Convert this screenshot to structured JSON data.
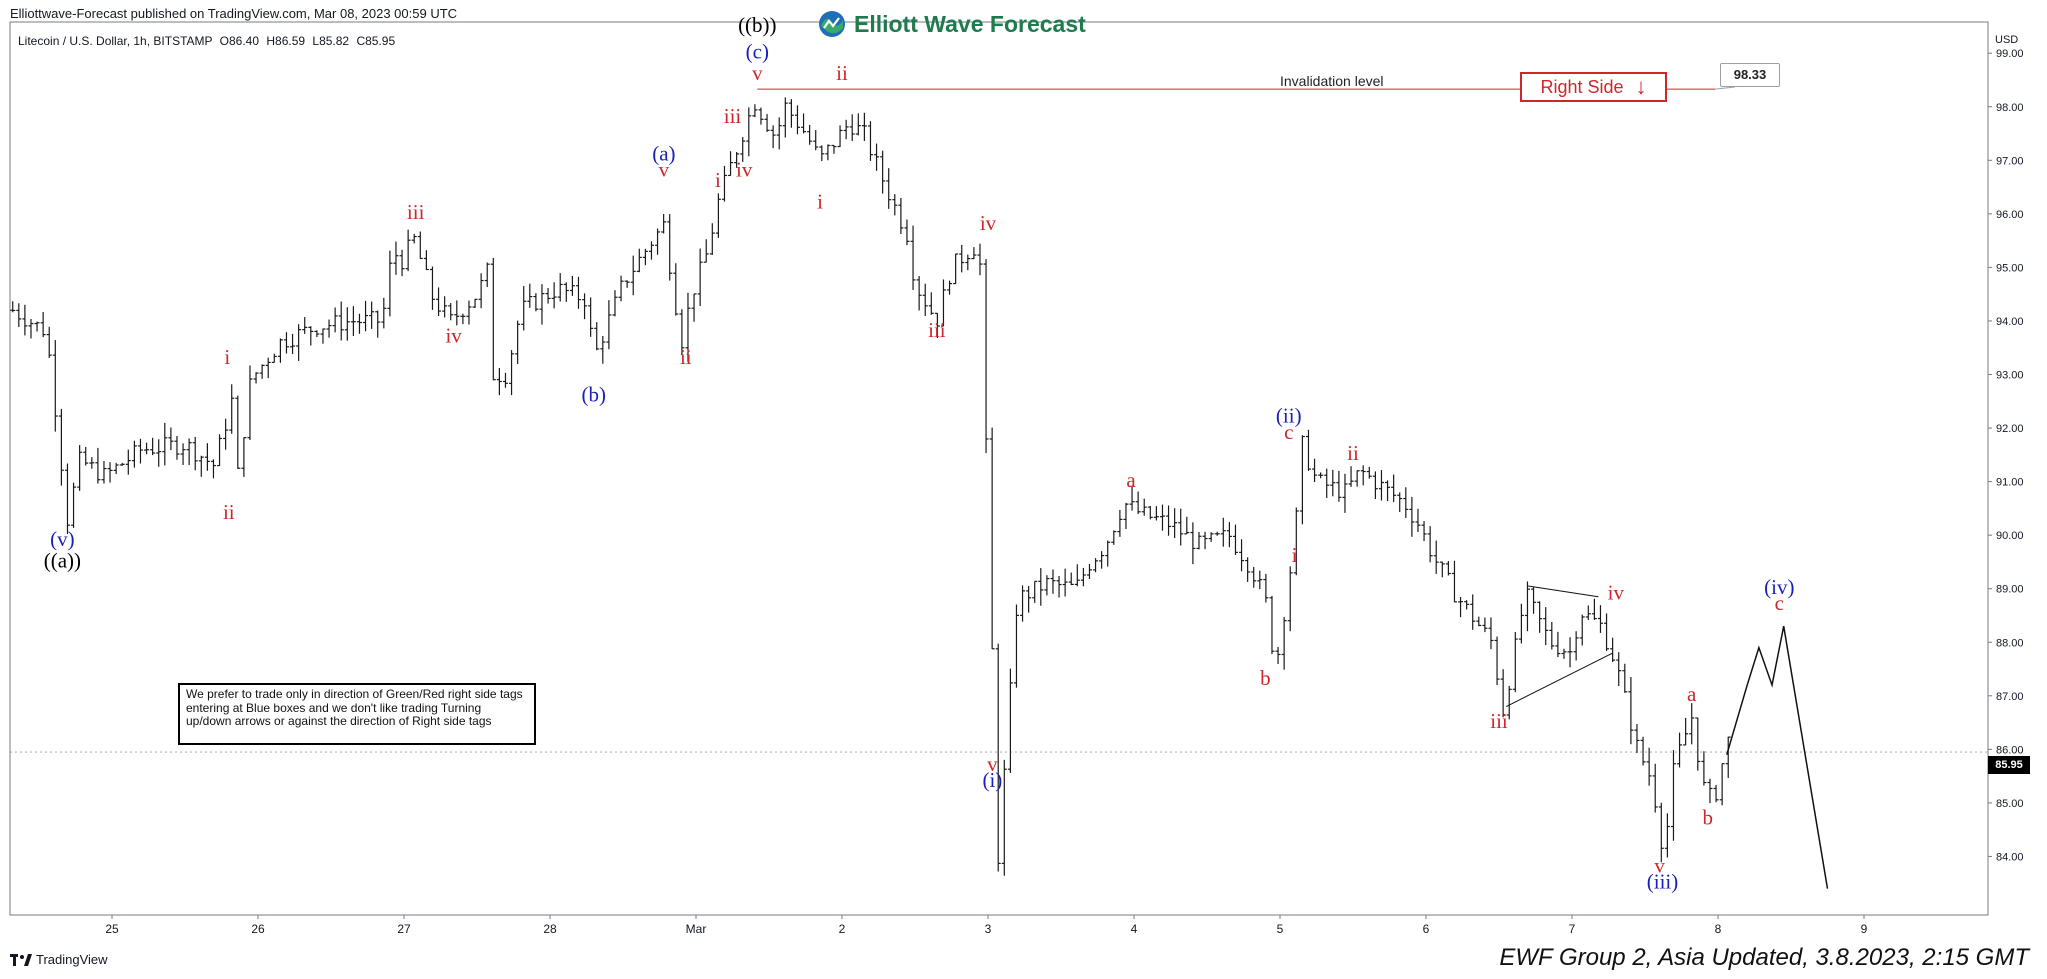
{
  "header": {
    "published": "Elliottwave-Forecast published on TradingView.com, Mar 08, 2023 00:59 UTC",
    "symbol": "Litecoin / U.S. Dollar, 1h, BITSTAMP",
    "open": "O86.40",
    "high": "H86.59",
    "low": "L85.82",
    "close": "C85.95",
    "currency": "USD"
  },
  "brand": {
    "name": "Elliott Wave Forecast"
  },
  "annotations": {
    "invalidation_label": "Invalidation level",
    "invalidation_price": "98.33",
    "right_side_label": "Right Side",
    "right_side_arrow": "↓",
    "last_price": "85.95",
    "note": "We prefer to trade only in direction of Green/Red right side tags entering at Blue boxes and we don't like trading Turning up/down arrows or against the direction of Right side tags"
  },
  "footer": {
    "tradingview": "TradingView",
    "update": "EWF Group 2, Asia Updated, 3.8.2023, 2:15 GMT"
  },
  "colors": {
    "wave_red": "#d0262b",
    "wave_blue": "#1a1fb8",
    "wave_black": "#000000",
    "bars": "#1a1a1a"
  },
  "chart_data": {
    "type": "ohlc",
    "title": "Litecoin / U.S. Dollar, 1h, BITSTAMP",
    "x_ticks": [
      "25",
      "26",
      "27",
      "28",
      "Mar",
      "2",
      "3",
      "4",
      "5",
      "6",
      "7",
      "8",
      "9"
    ],
    "x_tick_pos": [
      0,
      1,
      2,
      3,
      4,
      5,
      6,
      7,
      8,
      9,
      10,
      11,
      12
    ],
    "xlim": [
      -0.7,
      12.9
    ],
    "y_ticks": [
      84,
      85,
      86,
      87,
      88,
      89,
      90,
      91,
      92,
      93,
      94,
      95,
      96,
      97,
      98,
      99
    ],
    "ylim": [
      83.1,
      99.6
    ],
    "invalidation_level": 98.33,
    "last_price": 85.95,
    "path": [
      [
        -0.68,
        94.2
      ],
      [
        -0.45,
        93.8
      ],
      [
        -0.35,
        91.5
      ],
      [
        -0.32,
        90.1
      ],
      [
        -0.22,
        91.4
      ],
      [
        -0.05,
        91.1
      ],
      [
        0.2,
        91.6
      ],
      [
        0.5,
        91.7
      ],
      [
        0.7,
        91.3
      ],
      [
        0.82,
        92.5
      ],
      [
        0.83,
        90.5
      ],
      [
        0.95,
        92.9
      ],
      [
        1.15,
        93.6
      ],
      [
        1.4,
        93.9
      ],
      [
        1.65,
        94.0
      ],
      [
        1.85,
        94.0
      ],
      [
        1.92,
        95.3
      ],
      [
        2.0,
        95.1
      ],
      [
        2.06,
        95.6
      ],
      [
        2.2,
        94.4
      ],
      [
        2.32,
        94.0
      ],
      [
        2.5,
        94.5
      ],
      [
        2.6,
        95.1
      ],
      [
        2.6,
        93.0
      ],
      [
        2.7,
        93.0
      ],
      [
        2.8,
        94.2
      ],
      [
        3.05,
        94.6
      ],
      [
        3.25,
        94.4
      ],
      [
        3.3,
        93.3
      ],
      [
        3.5,
        94.7
      ],
      [
        3.7,
        95.5
      ],
      [
        3.78,
        95.8
      ],
      [
        3.9,
        93.6
      ],
      [
        3.97,
        94.5
      ],
      [
        4.08,
        95.3
      ],
      [
        4.15,
        96.2
      ],
      [
        4.25,
        97.0
      ],
      [
        4.4,
        98.1
      ],
      [
        4.55,
        97.4
      ],
      [
        4.6,
        98.05
      ],
      [
        4.75,
        97.5
      ],
      [
        4.85,
        97.0
      ],
      [
        5.05,
        97.7
      ],
      [
        5.15,
        97.5
      ],
      [
        5.3,
        96.5
      ],
      [
        5.45,
        95.6
      ],
      [
        5.5,
        94.7
      ],
      [
        5.65,
        94.0
      ],
      [
        5.75,
        95.0
      ],
      [
        5.9,
        95.4
      ],
      [
        5.95,
        95.0
      ],
      [
        6.07,
        84.0
      ],
      [
        6.2,
        88.8
      ],
      [
        6.4,
        89.1
      ],
      [
        6.6,
        89.0
      ],
      [
        6.7,
        89.5
      ],
      [
        6.8,
        89.8
      ],
      [
        6.93,
        90.6
      ],
      [
        7.05,
        90.4
      ],
      [
        7.25,
        90.2
      ],
      [
        7.45,
        89.8
      ],
      [
        7.65,
        90.0
      ],
      [
        7.8,
        89.4
      ],
      [
        7.9,
        88.8
      ],
      [
        7.97,
        87.5
      ],
      [
        8.1,
        89.9
      ],
      [
        8.15,
        91.7
      ],
      [
        8.25,
        91.0
      ],
      [
        8.45,
        90.8
      ],
      [
        8.55,
        91.2
      ],
      [
        8.7,
        90.9
      ],
      [
        8.85,
        90.6
      ],
      [
        8.95,
        90.2
      ],
      [
        9.05,
        89.6
      ],
      [
        9.2,
        88.9
      ],
      [
        9.45,
        88.0
      ],
      [
        9.53,
        86.7
      ],
      [
        9.68,
        88.9
      ],
      [
        9.85,
        88.0
      ],
      [
        10.0,
        87.8
      ],
      [
        10.05,
        88.6
      ],
      [
        10.2,
        88.3
      ],
      [
        10.3,
        87.6
      ],
      [
        10.45,
        86.0
      ],
      [
        10.55,
        85.4
      ],
      [
        10.63,
        84.0
      ],
      [
        10.7,
        85.7
      ],
      [
        10.82,
        86.6
      ],
      [
        10.9,
        85.3
      ],
      [
        10.97,
        85.0
      ],
      [
        11.05,
        86.0
      ],
      [
        11.1,
        86.4
      ]
    ],
    "projection": [
      [
        11.06,
        85.9
      ],
      [
        11.2,
        87.2
      ],
      [
        11.28,
        87.9
      ],
      [
        11.37,
        87.2
      ],
      [
        11.45,
        88.3
      ],
      [
        11.75,
        83.4
      ]
    ],
    "triangle_lines": [
      [
        [
          9.7,
          89.05
        ],
        [
          10.18,
          88.85
        ]
      ],
      [
        [
          9.55,
          86.8
        ],
        [
          10.28,
          87.8
        ]
      ]
    ],
    "wave_labels": [
      {
        "text": "(v)",
        "x": -0.34,
        "y": 89.8,
        "color": "blue"
      },
      {
        "text": "((a))",
        "x": -0.34,
        "y": 89.4,
        "color": "black"
      },
      {
        "text": "i",
        "x": 0.79,
        "y": 93.2,
        "color": "red"
      },
      {
        "text": "ii",
        "x": 0.8,
        "y": 90.3,
        "color": "red"
      },
      {
        "text": "iii",
        "x": 2.08,
        "y": 95.9,
        "color": "red"
      },
      {
        "text": "iv",
        "x": 2.34,
        "y": 93.6,
        "color": "red"
      },
      {
        "text": "(a)",
        "x": 3.78,
        "y": 97.0,
        "color": "blue"
      },
      {
        "text": "v",
        "x": 3.78,
        "y": 96.7,
        "color": "red"
      },
      {
        "text": "(b)",
        "x": 3.3,
        "y": 92.5,
        "color": "blue"
      },
      {
        "text": "i",
        "x": 4.15,
        "y": 96.5,
        "color": "red"
      },
      {
        "text": "ii",
        "x": 3.93,
        "y": 93.2,
        "color": "red"
      },
      {
        "text": "iii",
        "x": 4.25,
        "y": 97.7,
        "color": "red"
      },
      {
        "text": "iv",
        "x": 4.33,
        "y": 96.7,
        "color": "red"
      },
      {
        "text": "((b))",
        "x": 4.42,
        "y": 99.4,
        "color": "black"
      },
      {
        "text": "(c)",
        "x": 4.42,
        "y": 98.9,
        "color": "blue"
      },
      {
        "text": "v",
        "x": 4.42,
        "y": 98.5,
        "color": "red"
      },
      {
        "text": "ii",
        "x": 5.0,
        "y": 98.5,
        "color": "red"
      },
      {
        "text": "i",
        "x": 4.85,
        "y": 96.1,
        "color": "red"
      },
      {
        "text": "iv",
        "x": 6.0,
        "y": 95.7,
        "color": "red"
      },
      {
        "text": "iii",
        "x": 5.65,
        "y": 93.7,
        "color": "red"
      },
      {
        "text": "v",
        "x": 6.03,
        "y": 85.6,
        "color": "red"
      },
      {
        "text": "(i)",
        "x": 6.03,
        "y": 85.3,
        "color": "blue"
      },
      {
        "text": "a",
        "x": 6.98,
        "y": 90.9,
        "color": "red"
      },
      {
        "text": "b",
        "x": 7.9,
        "y": 87.2,
        "color": "red"
      },
      {
        "text": "(ii)",
        "x": 8.06,
        "y": 92.1,
        "color": "blue"
      },
      {
        "text": "c",
        "x": 8.06,
        "y": 91.8,
        "color": "red"
      },
      {
        "text": "i",
        "x": 8.1,
        "y": 89.5,
        "color": "red"
      },
      {
        "text": "ii",
        "x": 8.5,
        "y": 91.4,
        "color": "red"
      },
      {
        "text": "iii",
        "x": 9.5,
        "y": 86.4,
        "color": "red"
      },
      {
        "text": "iv",
        "x": 10.3,
        "y": 88.8,
        "color": "red"
      },
      {
        "text": "v",
        "x": 10.6,
        "y": 83.7,
        "color": "red"
      },
      {
        "text": "(iii)",
        "x": 10.62,
        "y": 83.4,
        "color": "blue"
      },
      {
        "text": "a",
        "x": 10.82,
        "y": 86.9,
        "color": "red"
      },
      {
        "text": "b",
        "x": 10.93,
        "y": 84.6,
        "color": "red"
      },
      {
        "text": "(iv)",
        "x": 11.42,
        "y": 88.9,
        "color": "blue"
      },
      {
        "text": "c",
        "x": 11.42,
        "y": 88.6,
        "color": "red"
      }
    ]
  }
}
